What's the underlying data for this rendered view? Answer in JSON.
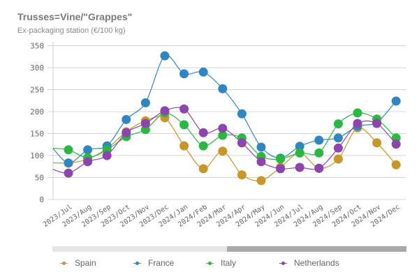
{
  "chart_data": {
    "type": "line",
    "title": "Trusses=Vine/\"Grappes\"",
    "subtitle": "Ex-packaging station (€/100 kg)",
    "xlabel": "",
    "ylabel": "",
    "ylim": [
      0,
      350
    ],
    "yticks": [
      "0",
      "50",
      "100",
      "150",
      "200",
      "250",
      "300",
      "350"
    ],
    "grid": true,
    "legend_position": "bottom",
    "categories": [
      "2023/Jul",
      "2023/Aug",
      "2023/Sep",
      "2023/Oct",
      "2023/Nov",
      "2023/Dec",
      "2024/Jan",
      "2024/Feb",
      "2024/Mar",
      "2024/Apr",
      "2024/May",
      "2024/Jun",
      "2024/Jul",
      "2024/Aug",
      "2024/Sep",
      "2024/Oct",
      "2024/Nov",
      "2024/Dec"
    ],
    "offscreen_previous": {
      "Spain": 84,
      "France": 127,
      "Italy": 117,
      "Netherlands": 72
    },
    "series": [
      {
        "name": "Spain",
        "color": "#c8962a",
        "values": [
          83,
          92,
          116,
          154,
          179,
          186,
          122,
          70,
          110,
          56,
          43,
          73,
          106,
          71,
          92,
          163,
          129,
          79
        ]
      },
      {
        "name": "France",
        "color": "#2f86c0",
        "values": [
          83,
          113,
          122,
          182,
          220,
          327,
          286,
          290,
          252,
          195,
          119,
          94,
          121,
          135,
          140,
          167,
          175,
          224
        ]
      },
      {
        "name": "Italy",
        "color": "#2bb842",
        "values": [
          113,
          95,
          113,
          143,
          159,
          197,
          170,
          122,
          146,
          140,
          98,
          92,
          106,
          106,
          172,
          197,
          183,
          140
        ]
      },
      {
        "name": "Netherlands",
        "color": "#8e44ad",
        "values": [
          60,
          86,
          100,
          152,
          173,
          202,
          206,
          152,
          162,
          129,
          86,
          70,
          73,
          71,
          117,
          173,
          173,
          126
        ]
      }
    ],
    "scrollbar": {
      "visible_fraction": 0.5,
      "position": "end"
    }
  },
  "legend": [
    {
      "label": "Spain",
      "color": "#c8962a"
    },
    {
      "label": "France",
      "color": "#2f86c0"
    },
    {
      "label": "Italy",
      "color": "#2bb842"
    },
    {
      "label": "Netherlands",
      "color": "#8e44ad"
    }
  ]
}
